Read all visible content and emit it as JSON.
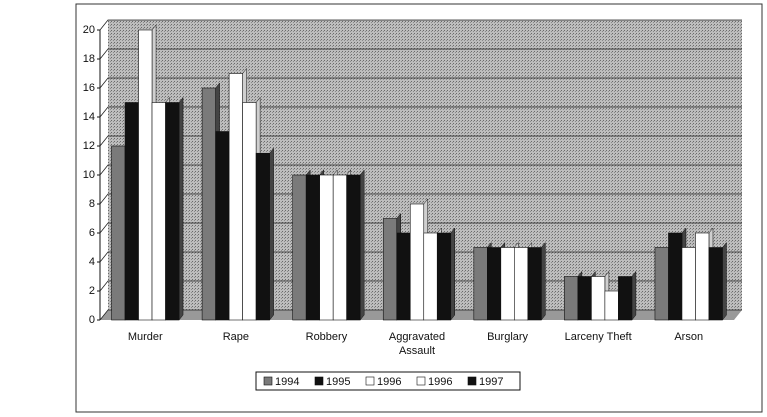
{
  "chart_data": {
    "type": "bar",
    "categories": [
      "Murder",
      "Rape",
      "Robbery",
      "Aggravated Assault",
      "Burglary",
      "Larceny Theft",
      "Arson"
    ],
    "series": [
      {
        "name": "1994",
        "color": "#7a7a7a",
        "values": [
          12,
          16,
          10,
          7,
          5,
          3,
          5
        ]
      },
      {
        "name": "1995",
        "color": "#111111",
        "values": [
          15,
          13,
          10,
          6,
          5,
          3,
          6
        ]
      },
      {
        "name": "1996",
        "color": "#ffffff",
        "values": [
          20,
          17,
          10,
          8,
          5,
          3,
          5
        ]
      },
      {
        "name": "1996",
        "color": "#ffffff",
        "values": [
          15,
          15,
          10,
          6,
          5,
          2,
          6
        ]
      },
      {
        "name": "1997",
        "color": "#111111",
        "values": [
          15,
          11.5,
          10,
          6,
          5,
          3,
          5
        ]
      }
    ],
    "ylim": [
      0,
      20
    ],
    "yticks": [
      0,
      2,
      4,
      6,
      8,
      10,
      12,
      14,
      16,
      18,
      20
    ],
    "grid": true,
    "legend": "bottom"
  }
}
